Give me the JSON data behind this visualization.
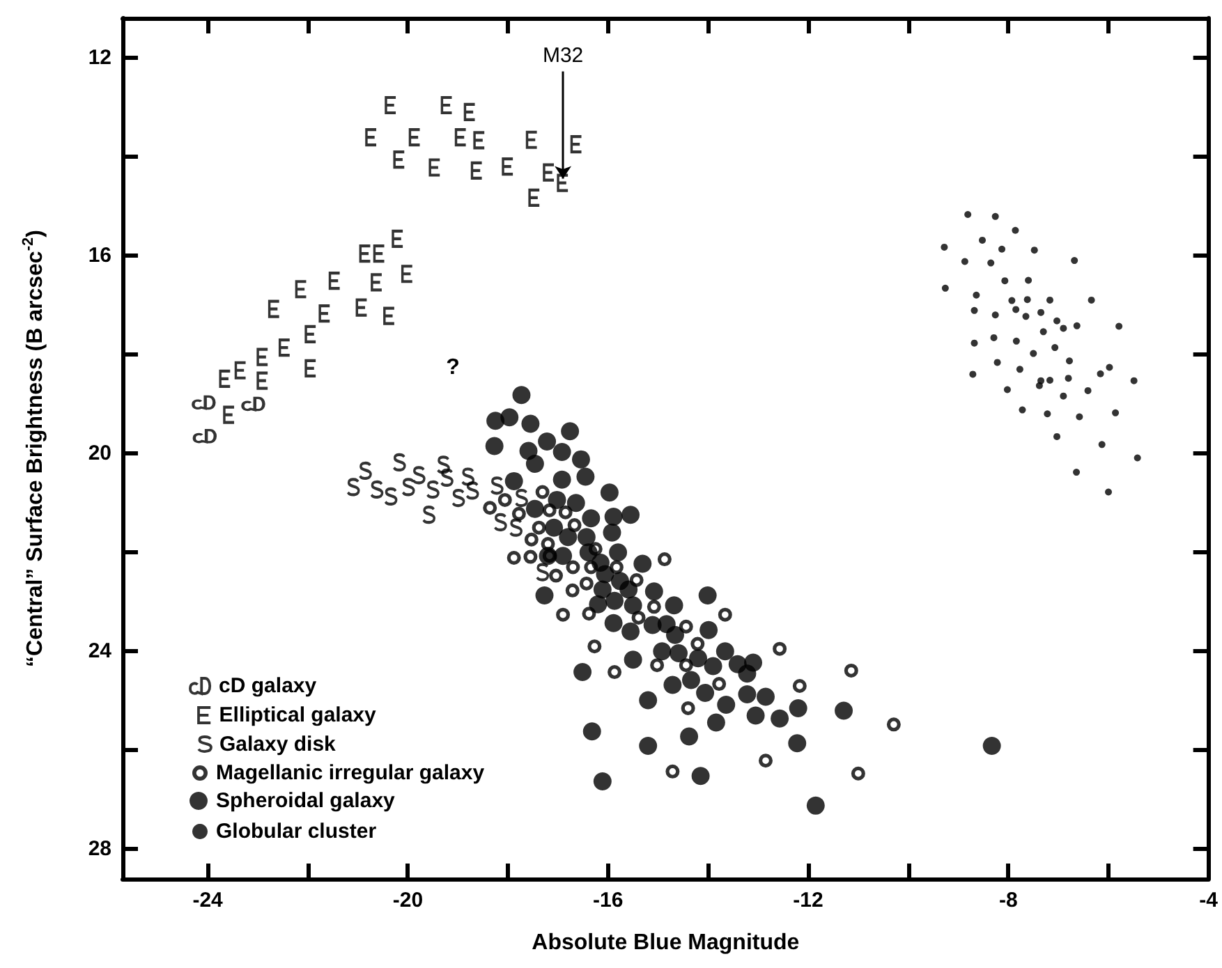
{
  "chart_data": {
    "type": "scatter",
    "xlabel": "Absolute Blue Magnitude",
    "ylabel": "“Central” Surface Brightness (B arcsec$^{-2}$)",
    "xlim": [
      -25.7,
      -4
    ],
    "ylim": [
      28.6,
      11.2
    ],
    "xticks": [
      -24,
      {
        "value": -22,
        "label": null
      },
      -20,
      {
        "value": -18,
        "label": null
      },
      -16,
      {
        "value": -14,
        "label": null
      },
      -12,
      {
        "value": -10,
        "label": null
      },
      -8,
      {
        "value": -6,
        "label": null
      },
      -4
    ],
    "yticks": [
      12,
      {
        "value": 14,
        "label": null
      },
      16,
      {
        "value": 18,
        "label": null
      },
      20,
      {
        "value": 22,
        "label": null
      },
      24,
      {
        "value": 26,
        "label": null
      },
      28
    ],
    "legend": "bottom left",
    "annotations": [
      {
        "text": "M32",
        "x": -16.9,
        "y": 14.53
      },
      "?"
    ],
    "series": [
      {
        "name": "cD galaxy",
        "color": "#000000",
        "x": [
          -24.08,
          -23.09,
          -24.06
        ],
        "values": [
          18.97,
          19.0,
          19.65
        ]
      },
      {
        "name": "Elliptical galaxy",
        "color": "#000000",
        "x": [
          -20.34,
          -19.22,
          -18.76,
          -20.73,
          -19.86,
          -18.94,
          -18.57,
          -17.52,
          -16.63,
          -20.17,
          -19.46,
          -18.62,
          -18.0,
          -17.18,
          -16.9,
          -17.47,
          -20.2,
          -20.85,
          -20.57,
          -20.01,
          -21.46,
          -20.62,
          -22.13,
          -22.67,
          -21.66,
          -20.92,
          -20.37,
          -21.94,
          -22.46,
          -22.9,
          -23.34,
          -23.65,
          -22.9,
          -21.94,
          -23.57
        ],
        "values": [
          12.96,
          12.96,
          13.1,
          13.61,
          13.61,
          13.61,
          13.67,
          13.66,
          13.75,
          14.06,
          14.22,
          14.28,
          14.2,
          14.32,
          14.53,
          14.83,
          15.66,
          15.96,
          15.96,
          16.37,
          16.51,
          16.54,
          16.68,
          17.08,
          17.17,
          17.05,
          17.22,
          17.59,
          17.86,
          18.05,
          18.32,
          18.49,
          18.53,
          18.28,
          19.22
        ]
      },
      {
        "name": "Galaxy disk",
        "color": "#000000",
        "x": [
          -21.09,
          -20.85,
          -20.62,
          -20.34,
          -20.17,
          -19.99,
          -19.78,
          -19.5,
          -19.29,
          -19.22,
          -18.99,
          -18.8,
          -18.71,
          -19.58,
          -18.22,
          -17.73,
          -18.15,
          -17.84,
          -17.31
        ],
        "values": [
          20.68,
          20.35,
          20.73,
          20.87,
          20.18,
          20.68,
          20.44,
          20.73,
          20.23,
          20.49,
          20.9,
          20.47,
          20.75,
          21.24,
          20.65,
          20.9,
          21.39,
          21.5,
          22.4
        ]
      },
      {
        "name": "Magellanic irregular galaxy",
        "color": "#000000",
        "marker": "circle",
        "x": [
          -18.36,
          -18.06,
          -17.31,
          -17.78,
          -17.17,
          -16.85,
          -17.38,
          -16.67,
          -17.53,
          -17.2,
          -17.88,
          -17.55,
          -17.17,
          -17.04,
          -16.7,
          -16.25,
          -16.34,
          -15.83,
          -16.43,
          -16.71,
          -15.43,
          -14.87,
          -16.9,
          -16.38,
          -15.08,
          -15.39,
          -14.44,
          -13.66,
          -14.21,
          -14.44,
          -15.02,
          -13.78,
          -14.4,
          -16.27,
          -15.87,
          -14.71,
          -12.85,
          -12.57,
          -11.14,
          -12.17,
          -10.29,
          -11.0
        ],
        "values": [
          21.1,
          20.94,
          20.78,
          21.22,
          21.15,
          21.19,
          21.5,
          21.45,
          21.74,
          21.83,
          22.11,
          22.09,
          22.07,
          22.47,
          22.3,
          21.93,
          22.3,
          22.3,
          22.63,
          22.77,
          22.56,
          22.14,
          23.26,
          23.24,
          23.1,
          23.32,
          23.5,
          23.26,
          23.85,
          24.28,
          24.28,
          24.66,
          25.15,
          23.9,
          24.42,
          26.43,
          26.21,
          23.95,
          24.39,
          24.7,
          25.48,
          26.47
        ]
      },
      {
        "name": "Spheroidal galaxy",
        "color": "#000000",
        "marker": "circle",
        "x": [
          -17.73,
          -18.25,
          -17.97,
          -17.55,
          -16.76,
          -18.27,
          -17.22,
          -17.59,
          -16.92,
          -17.46,
          -16.54,
          -16.92,
          -16.45,
          -17.88,
          -15.97,
          -17.02,
          -16.64,
          -17.46,
          -15.55,
          -15.89,
          -16.34,
          -17.08,
          -16.8,
          -16.43,
          -15.92,
          -17.2,
          -16.9,
          -16.39,
          -15.8,
          -16.15,
          -15.31,
          -16.06,
          -15.76,
          -15.59,
          -16.11,
          -17.27,
          -16.2,
          -15.87,
          -15.5,
          -15.08,
          -14.01,
          -14.68,
          -15.89,
          -15.55,
          -15.11,
          -14.83,
          -14.66,
          -13.99,
          -14.92,
          -14.59,
          -15.5,
          -14.2,
          -13.9,
          -13.66,
          -13.41,
          -13.1,
          -13.22,
          -16.51,
          -14.34,
          -14.71,
          -14.06,
          -13.22,
          -12.85,
          -15.2,
          -13.64,
          -13.05,
          -12.57,
          -13.84,
          -14.38,
          -16.32,
          -15.2,
          -16.11,
          -14.15,
          -12.2,
          -11.29,
          -12.22,
          -11.85,
          -8.33
        ],
        "values": [
          18.82,
          19.34,
          19.27,
          19.4,
          19.55,
          19.85,
          19.76,
          19.95,
          19.97,
          20.21,
          20.12,
          20.53,
          20.47,
          20.56,
          20.79,
          20.94,
          21.0,
          21.12,
          21.24,
          21.28,
          21.31,
          21.5,
          21.69,
          21.69,
          21.6,
          22.07,
          22.07,
          22.0,
          22.0,
          22.21,
          22.23,
          22.44,
          22.58,
          22.75,
          22.75,
          22.87,
          23.05,
          22.98,
          23.07,
          22.79,
          22.87,
          23.07,
          23.43,
          23.6,
          23.47,
          23.45,
          23.67,
          23.57,
          24.0,
          24.04,
          24.17,
          24.14,
          24.3,
          24.0,
          24.26,
          24.23,
          24.45,
          24.42,
          24.58,
          24.68,
          24.84,
          24.87,
          24.92,
          24.99,
          25.08,
          25.3,
          25.36,
          25.44,
          25.72,
          25.62,
          25.91,
          26.63,
          26.52,
          25.15,
          25.2,
          25.86,
          27.12,
          25.91
        ]
      },
      {
        "name": "Globular cluster",
        "color": "#000000",
        "marker": "circle",
        "x": [
          -8.81,
          -8.26,
          -7.86,
          -9.28,
          -8.52,
          -8.13,
          -7.48,
          -8.87,
          -8.35,
          -6.68,
          -9.26,
          -8.07,
          -7.6,
          -8.64,
          -7.93,
          -7.62,
          -7.17,
          -6.34,
          -8.68,
          -7.85,
          -8.26,
          -7.65,
          -7.35,
          -7.03,
          -6.9,
          -6.63,
          -5.79,
          -7.3,
          -8.68,
          -8.29,
          -7.84,
          -7.07,
          -7.5,
          -8.22,
          -8.71,
          -7.77,
          -6.78,
          -7.35,
          -7.38,
          -7.17,
          -6.8,
          -6.16,
          -5.98,
          -5.49,
          -8.02,
          -6.9,
          -6.41,
          -7.72,
          -7.22,
          -6.58,
          -5.86,
          -7.03,
          -6.13,
          -5.42,
          -6.64,
          -6.0
        ],
        "values": [
          15.17,
          15.21,
          15.49,
          15.83,
          15.69,
          15.87,
          15.89,
          16.12,
          16.15,
          16.1,
          16.66,
          16.51,
          16.5,
          16.8,
          16.91,
          16.89,
          16.9,
          16.9,
          17.11,
          17.09,
          17.2,
          17.23,
          17.15,
          17.32,
          17.47,
          17.42,
          17.43,
          17.54,
          17.77,
          17.66,
          17.73,
          17.86,
          17.98,
          18.16,
          18.4,
          18.3,
          18.13,
          18.53,
          18.63,
          18.52,
          18.48,
          18.39,
          18.26,
          18.53,
          18.71,
          18.84,
          18.73,
          19.12,
          19.2,
          19.26,
          19.18,
          19.66,
          19.82,
          20.09,
          20.38,
          20.78
        ]
      }
    ]
  }
}
